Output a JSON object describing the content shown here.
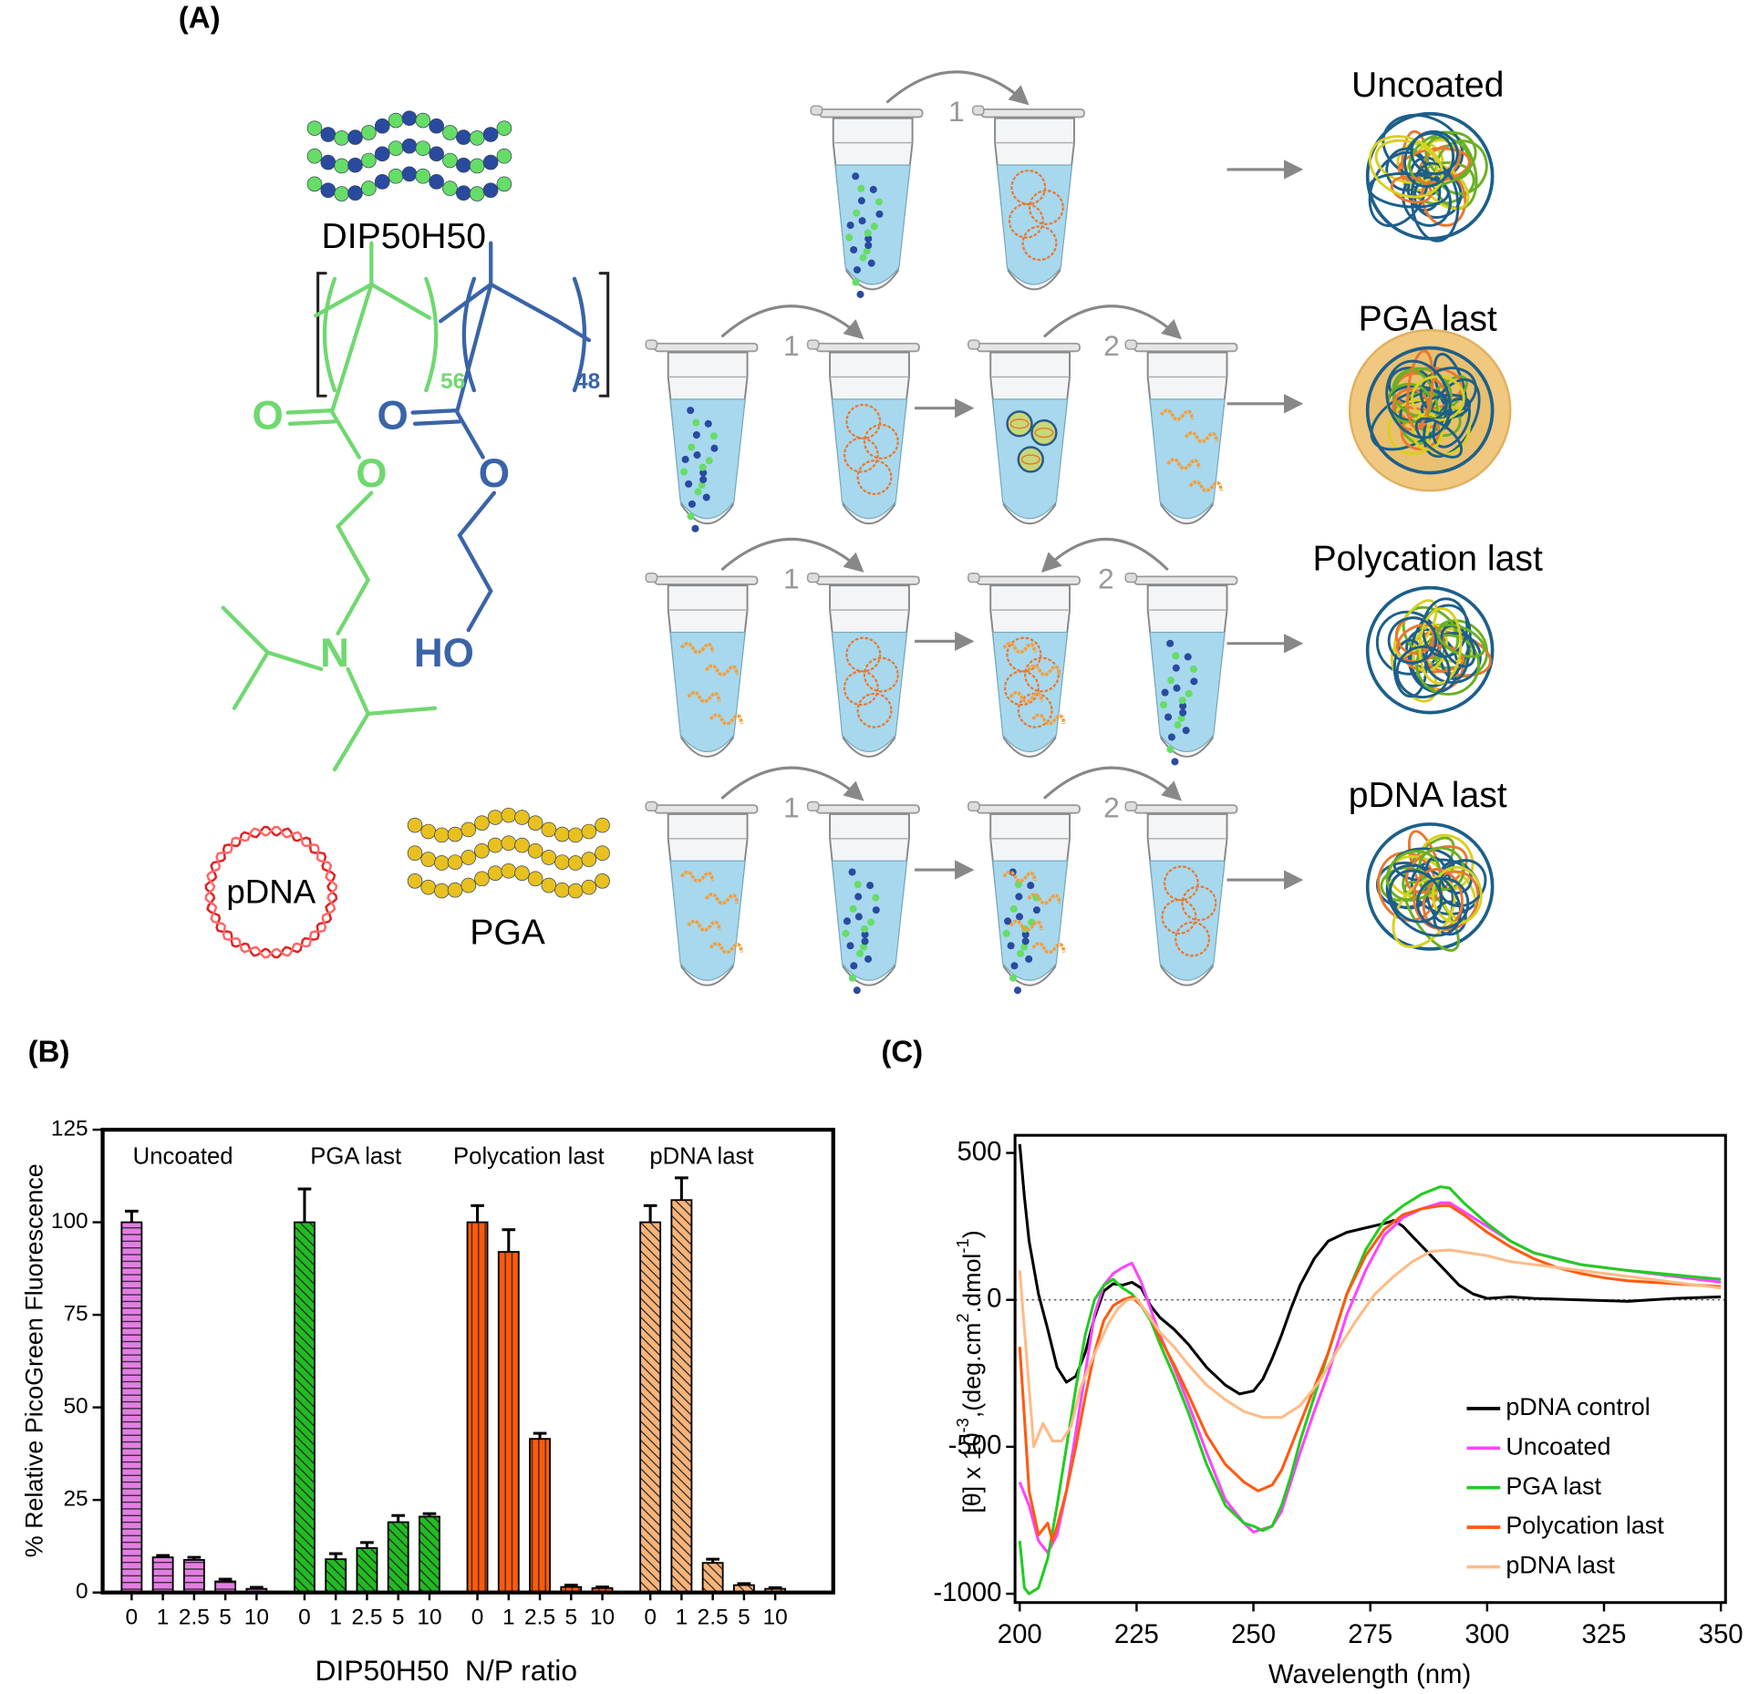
{
  "diagram": {
    "panel_label": "(A)",
    "polymer_label": "DIP50H50",
    "subscripts": [
      "56",
      "48"
    ],
    "atoms": [
      "O",
      "O",
      "O",
      "O",
      "N",
      "HO"
    ],
    "pdna_label": "pDNA",
    "pga_label": "PGA",
    "outcomes": [
      "Uncoated",
      "PGA last",
      "Polycation last",
      "pDNA last"
    ],
    "steps": [
      "1",
      "1",
      "2",
      "1",
      "2",
      "1",
      "2"
    ]
  },
  "chart_data": [
    {
      "type": "bar",
      "panel_label": "(B)",
      "ylabel": "% Relative PicoGreen Fluorescence",
      "xlabel": "DIP50H50  N/P ratio",
      "categories": [
        "0",
        "1",
        "2.5",
        "5",
        "10"
      ],
      "ylim": [
        0,
        125
      ],
      "yticks": [
        0,
        25,
        50,
        75,
        100,
        125
      ],
      "series": [
        {
          "name": "Uncoated",
          "color": "#e37ee3",
          "hatch": "horizontal",
          "values": [
            100,
            9.5,
            8.8,
            3,
            1
          ],
          "errors": [
            3,
            0.5,
            0.7,
            0.6,
            0.4
          ]
        },
        {
          "name": "PGA last",
          "color": "#22bb22",
          "hatch": "diagonal",
          "values": [
            100,
            9,
            12,
            19,
            20.5
          ],
          "errors": [
            9,
            1.5,
            1.5,
            1.8,
            0.8
          ]
        },
        {
          "name": "Polycation last",
          "color": "#ff5a0a",
          "hatch": "vertical",
          "values": [
            100,
            92,
            41.5,
            1.5,
            1.2
          ],
          "errors": [
            4.5,
            6,
            1.5,
            0.5,
            0.3
          ]
        },
        {
          "name": "pDNA last",
          "color": "#f9b47a",
          "hatch": "diagonal",
          "values": [
            100,
            106,
            8,
            2,
            1
          ],
          "errors": [
            4.5,
            6,
            1,
            0.4,
            0.3
          ]
        }
      ]
    },
    {
      "type": "line",
      "panel_label": "(C)",
      "xlabel": "Wavelength (nm)",
      "ylabel_parts": [
        {
          "text": "[θ] x 10"
        },
        {
          "text": "-3",
          "sup": true
        },
        {
          "text": ",(deg.cm"
        },
        {
          "text": "2",
          "sup": true
        },
        {
          "text": ".dmol"
        },
        {
          "text": "-1",
          "sup": true
        },
        {
          "text": ")"
        }
      ],
      "xlim": [
        199,
        351
      ],
      "ylim": [
        -1030,
        560
      ],
      "xticks": [
        200,
        225,
        250,
        275,
        300,
        325,
        350
      ],
      "yticks": [
        -1000,
        -500,
        0,
        500
      ],
      "zero_line": true,
      "legend": "lower right",
      "series": [
        {
          "name": "pDNA control",
          "color": "#000000",
          "x": [
            200,
            201,
            202,
            204,
            206,
            208,
            210,
            212,
            214,
            216,
            218,
            220,
            222,
            224,
            226,
            228,
            230,
            233,
            236,
            240,
            244,
            247,
            250,
            252,
            254,
            256,
            258,
            260,
            263,
            266,
            270,
            274,
            278,
            280,
            282,
            285,
            288,
            291,
            294,
            297,
            300,
            305,
            310,
            320,
            330,
            340,
            350
          ],
          "values": [
            530,
            350,
            200,
            20,
            -100,
            -230,
            -280,
            -260,
            -180,
            -60,
            30,
            55,
            50,
            60,
            40,
            -20,
            -60,
            -100,
            -150,
            -230,
            -290,
            -320,
            -310,
            -270,
            -200,
            -120,
            -30,
            50,
            140,
            200,
            230,
            245,
            260,
            270,
            250,
            200,
            150,
            100,
            50,
            20,
            5,
            10,
            5,
            0,
            -5,
            5,
            10
          ]
        },
        {
          "name": "Uncoated",
          "color": "#ff44ff",
          "x": [
            200,
            202,
            204,
            206,
            208,
            210,
            212,
            214,
            216,
            218,
            220,
            222,
            224,
            226,
            228,
            230,
            233,
            236,
            240,
            244,
            248,
            250,
            252,
            254,
            256,
            258,
            260,
            263,
            266,
            270,
            274,
            278,
            282,
            286,
            290,
            292,
            295,
            300,
            305,
            310,
            315,
            320,
            325,
            330,
            340,
            350
          ],
          "values": [
            -620,
            -700,
            -820,
            -860,
            -800,
            -650,
            -450,
            -250,
            -50,
            50,
            90,
            110,
            125,
            60,
            -30,
            -120,
            -230,
            -350,
            -520,
            -680,
            -760,
            -790,
            -780,
            -770,
            -720,
            -620,
            -520,
            -380,
            -250,
            -50,
            100,
            220,
            280,
            310,
            330,
            330,
            300,
            250,
            200,
            160,
            140,
            120,
            110,
            100,
            80,
            60
          ]
        },
        {
          "name": "PGA last",
          "color": "#22cc22",
          "x": [
            200,
            201,
            202,
            204,
            206,
            208,
            210,
            212,
            214,
            216,
            218,
            220,
            222,
            224,
            226,
            228,
            230,
            233,
            236,
            240,
            244,
            248,
            250,
            252,
            254,
            256,
            258,
            260,
            263,
            266,
            270,
            274,
            278,
            282,
            286,
            290,
            292,
            295,
            300,
            305,
            310,
            315,
            320,
            325,
            330,
            340,
            350
          ],
          "values": [
            -820,
            -980,
            -1000,
            -980,
            -880,
            -700,
            -500,
            -300,
            -120,
            0,
            50,
            70,
            40,
            20,
            -20,
            -70,
            -150,
            -260,
            -380,
            -560,
            -700,
            -760,
            -770,
            -785,
            -770,
            -700,
            -600,
            -480,
            -330,
            -180,
            20,
            170,
            270,
            320,
            360,
            385,
            380,
            330,
            260,
            200,
            160,
            140,
            120,
            110,
            100,
            85,
            70
          ]
        },
        {
          "name": "Polycation last",
          "color": "#ff5a10",
          "x": [
            200,
            201,
            202,
            204,
            206,
            207,
            208,
            210,
            212,
            214,
            216,
            218,
            220,
            222,
            224,
            226,
            228,
            230,
            233,
            236,
            240,
            244,
            248,
            251,
            254,
            256,
            258,
            260,
            263,
            266,
            270,
            274,
            278,
            282,
            286,
            290,
            292,
            295,
            300,
            305,
            310,
            315,
            320,
            325,
            330,
            340,
            350
          ],
          "values": [
            -160,
            -400,
            -650,
            -800,
            -760,
            -820,
            -770,
            -650,
            -500,
            -330,
            -180,
            -70,
            -20,
            0,
            10,
            -20,
            -60,
            -130,
            -220,
            -320,
            -460,
            -560,
            -620,
            -650,
            -630,
            -580,
            -500,
            -420,
            -300,
            -180,
            20,
            150,
            240,
            290,
            310,
            320,
            320,
            290,
            230,
            180,
            140,
            110,
            90,
            75,
            65,
            55,
            45
          ]
        },
        {
          "name": "pDNA last",
          "color": "#ffbb88",
          "x": [
            200,
            201,
            202,
            203,
            205,
            207,
            209,
            211,
            213,
            215,
            217,
            219,
            221,
            223,
            225,
            227,
            230,
            233,
            236,
            240,
            244,
            248,
            252,
            256,
            260,
            264,
            268,
            272,
            276,
            280,
            284,
            288,
            292,
            296,
            300,
            305,
            310,
            320,
            330,
            340,
            350
          ],
          "values": [
            100,
            -100,
            -300,
            -500,
            -420,
            -480,
            -480,
            -430,
            -300,
            -220,
            -150,
            -80,
            -30,
            0,
            5,
            -40,
            -110,
            -160,
            -220,
            -290,
            -340,
            -380,
            -400,
            -400,
            -360,
            -280,
            -170,
            -70,
            20,
            80,
            130,
            165,
            170,
            160,
            150,
            130,
            120,
            100,
            80,
            60,
            40
          ]
        }
      ]
    }
  ]
}
